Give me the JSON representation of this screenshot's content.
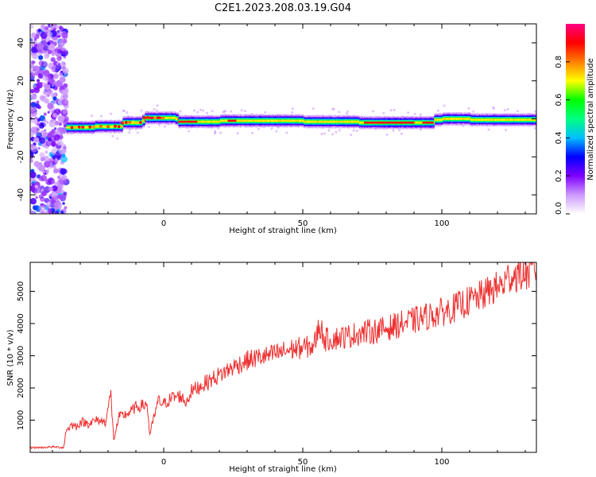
{
  "figure": {
    "title": "C2E1.2023.208.03.19.G04"
  },
  "chart_data": [
    {
      "type": "heatmap",
      "xlabel": "Height of straight line (km)",
      "ylabel": "Frequency (Hz)",
      "xlim": [
        -48,
        134
      ],
      "ylim": [
        -50,
        50
      ],
      "xticks": [
        0,
        50,
        100
      ],
      "yticks": [
        -40,
        -20,
        0,
        20,
        40
      ],
      "colorbar": {
        "label": "Normalized spectral amplitude",
        "range": [
          0,
          1
        ],
        "ticks": [
          "0.0",
          "0.2",
          "0.4",
          "0.6",
          "0.8"
        ],
        "colormap": [
          "#ffffff",
          "#cc99ff",
          "#7f00ff",
          "#0000ff",
          "#00bfff",
          "#00ff80",
          "#00ff00",
          "#ffff00",
          "#ff8000",
          "#ff0000",
          "#ff0080"
        ]
      },
      "noise_region_x": [
        -48,
        -35
      ],
      "ridge": {
        "x": [
          -35,
          -30,
          -25,
          -20,
          -15,
          -8,
          -7,
          0,
          4,
          5,
          10,
          20,
          30,
          40,
          50,
          55,
          60,
          70,
          75,
          80,
          90,
          95,
          97,
          100,
          110,
          120,
          134
        ],
        "freq": [
          -4.5,
          -4.5,
          -4,
          -4,
          -2,
          -1,
          0.5,
          0.5,
          0,
          -1.5,
          -1.5,
          -1,
          -1,
          -1,
          -1.5,
          -1.5,
          -1.5,
          -2,
          -2,
          -2,
          -2,
          -2,
          -0.5,
          0,
          -0.5,
          -0.5,
          -0.5
        ]
      }
    },
    {
      "type": "line",
      "xlabel": "Height of straight line (km)",
      "ylabel": "SNR (10 * v/v)",
      "xlim": [
        -48,
        134
      ],
      "ylim": [
        0,
        5900
      ],
      "xticks": [
        0,
        50,
        100
      ],
      "yticks": [
        1000,
        2000,
        3000,
        4000,
        5000
      ],
      "series": [
        {
          "color": "#ee3030",
          "x": [
            -48,
            -44,
            -40,
            -36,
            -35,
            -33,
            -31,
            -30,
            -27,
            -24,
            -21,
            -19,
            -18,
            -16,
            -13,
            -10,
            -6,
            -5,
            -2,
            0,
            3,
            6,
            8,
            10,
            14,
            18,
            22,
            26,
            30,
            34,
            38,
            42,
            46,
            50,
            54,
            56,
            58,
            62,
            66,
            70,
            74,
            78,
            82,
            86,
            90,
            94,
            98,
            102,
            106,
            110,
            114,
            118,
            122,
            124,
            126,
            130,
            134
          ],
          "y": [
            150,
            150,
            170,
            150,
            700,
            850,
            800,
            950,
            900,
            1000,
            950,
            1800,
            400,
            1100,
            1200,
            1400,
            1500,
            550,
            1600,
            1500,
            1700,
            1750,
            1550,
            1900,
            2100,
            2300,
            2500,
            2700,
            2850,
            2950,
            3000,
            3100,
            3200,
            3250,
            3300,
            3950,
            3500,
            3550,
            3600,
            3700,
            3750,
            3800,
            3900,
            4000,
            4100,
            4200,
            4300,
            4400,
            4550,
            4700,
            4850,
            5050,
            5200,
            5450,
            5500,
            5550,
            5650
          ]
        }
      ]
    }
  ]
}
